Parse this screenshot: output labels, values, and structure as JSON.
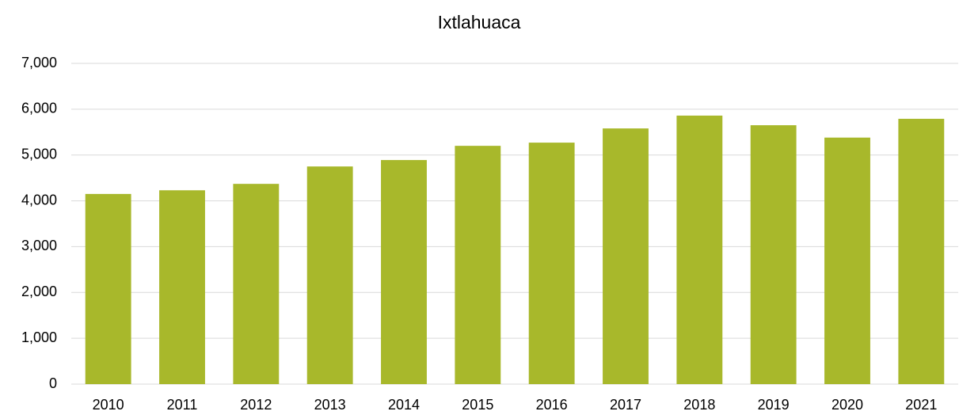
{
  "chart_data": {
    "type": "bar",
    "title": "Ixtlahuaca",
    "categories": [
      "2010",
      "2011",
      "2012",
      "2013",
      "2014",
      "2015",
      "2016",
      "2017",
      "2018",
      "2019",
      "2020",
      "2021"
    ],
    "values": [
      4150,
      4230,
      4370,
      4750,
      4890,
      5200,
      5270,
      5580,
      5860,
      5650,
      5380,
      5790
    ],
    "color": "#a8b82b",
    "ylim": [
      0,
      7000
    ],
    "yticks": [
      0,
      {
        "value": 1000,
        "label": "1,000"
      },
      {
        "value": 2000,
        "label": "2,000"
      },
      {
        "value": 3000,
        "label": "3,000"
      },
      {
        "value": 4000,
        "label": "4,000"
      },
      {
        "value": 5000,
        "label": "5,000"
      },
      {
        "value": 6000,
        "label": "6,000"
      },
      {
        "value": 7000,
        "label": "7,000"
      }
    ],
    "grid": true
  }
}
